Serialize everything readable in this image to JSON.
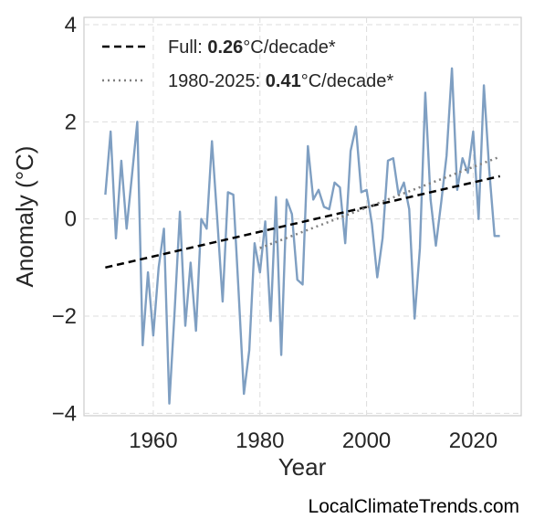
{
  "chart_data": {
    "type": "line",
    "xlabel": "Year",
    "ylabel": "Anomaly (°C)",
    "xlim": [
      1947,
      2029
    ],
    "ylim": [
      -4.05,
      4.15
    ],
    "xticks": [
      1960,
      1980,
      2000,
      2020
    ],
    "yticks": [
      -4,
      -2,
      0,
      2,
      4
    ],
    "ytick_labels": [
      "−4",
      "−2",
      "0",
      "2",
      "4"
    ],
    "grid": true,
    "legend_position": "top-left",
    "colors": {
      "series": "#7f9fc2",
      "full_trend": "#000000",
      "recent_trend": "#808080",
      "grid": "#dddddd",
      "frame": "#cccccc"
    },
    "series": [
      {
        "x": [
          1951,
          1952,
          1953,
          1954,
          1955,
          1956,
          1957,
          1958,
          1959,
          1960,
          1961,
          1962,
          1963,
          1964,
          1965,
          1966,
          1967,
          1968,
          1969,
          1970,
          1971,
          1972,
          1973,
          1974,
          1975,
          1976,
          1977,
          1978,
          1979,
          1980,
          1981,
          1982,
          1983,
          1984,
          1985,
          1986,
          1987,
          1988,
          1989,
          1990,
          1991,
          1992,
          1993,
          1994,
          1995,
          1996,
          1997,
          1998,
          1999,
          2000,
          2001,
          2002,
          2003,
          2004,
          2005,
          2006,
          2007,
          2008,
          2009,
          2010,
          2011,
          2012,
          2013,
          2014,
          2015,
          2016,
          2017,
          2018,
          2019,
          2020,
          2021,
          2022,
          2023,
          2024,
          2025
        ],
        "values": [
          0.5,
          1.8,
          -0.4,
          1.2,
          -0.2,
          0.9,
          2.0,
          -2.6,
          -1.1,
          -2.4,
          -1.0,
          -0.2,
          -3.8,
          -1.9,
          0.15,
          -2.2,
          -0.9,
          -2.3,
          0.0,
          -0.2,
          1.6,
          0.0,
          -1.7,
          0.55,
          0.5,
          -1.5,
          -3.6,
          -2.7,
          -0.5,
          -1.1,
          -0.05,
          -2.1,
          0.45,
          -2.8,
          0.4,
          0.1,
          -1.25,
          -1.35,
          1.5,
          0.4,
          0.6,
          0.25,
          0.2,
          0.75,
          0.65,
          -0.5,
          1.4,
          1.9,
          0.55,
          0.6,
          -0.1,
          -1.2,
          -0.4,
          1.2,
          1.25,
          0.5,
          0.75,
          0.2,
          -2.05,
          -0.6,
          2.6,
          0.4,
          -0.55,
          0.35,
          1.3,
          3.1,
          0.6,
          1.25,
          0.95,
          1.8,
          0.0,
          2.75,
          1.0,
          -0.35,
          -0.35
        ]
      }
    ],
    "trends": [
      {
        "label_prefix": "Full: ",
        "label_value": "0.26",
        "label_suffix": "°C/decade*",
        "style": "dashed",
        "x": [
          1951,
          2025
        ],
        "y": [
          -1.0,
          0.88
        ]
      },
      {
        "label_prefix": "1980-2025: ",
        "label_value": "0.41",
        "label_suffix": "°C/decade*",
        "style": "dotted",
        "x": [
          1980,
          2025
        ],
        "y": [
          -0.6,
          1.28
        ]
      }
    ]
  },
  "watermark": "LocalClimateTrends.com"
}
